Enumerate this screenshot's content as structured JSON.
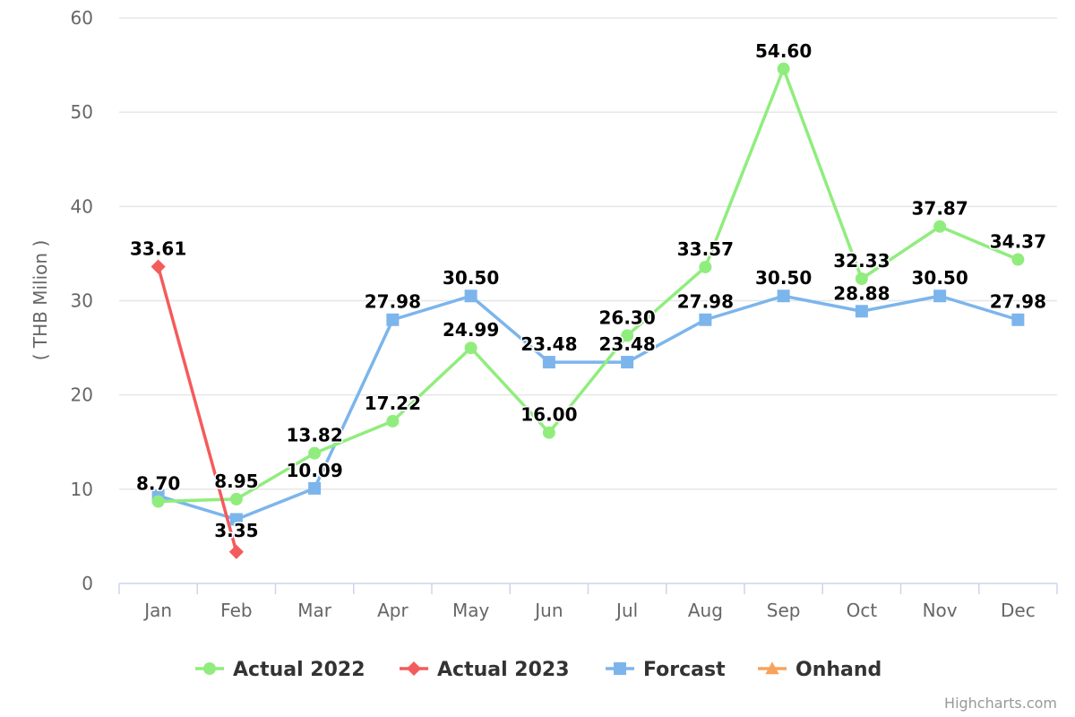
{
  "chart_data": {
    "type": "line",
    "title": "",
    "xlabel": "",
    "ylabel": "( THB Milion )",
    "ylim": [
      0,
      60
    ],
    "yticks": [
      0,
      10,
      20,
      30,
      40,
      50,
      60
    ],
    "categories": [
      "Jan",
      "Feb",
      "Mar",
      "Apr",
      "May",
      "Jun",
      "Jul",
      "Aug",
      "Sep",
      "Oct",
      "Nov",
      "Dec"
    ],
    "grid": true,
    "legend_position": "bottom-center",
    "series": [
      {
        "name": "Actual 2022",
        "color": "#90ed7d",
        "marker": "circle",
        "values": [
          8.7,
          8.95,
          13.82,
          17.22,
          24.99,
          16.0,
          26.3,
          33.57,
          54.6,
          32.33,
          37.87,
          34.37
        ],
        "labels": [
          "8.70",
          "8.95",
          "13.82",
          "17.22",
          "24.99",
          "16.00",
          "26.30",
          "33.57",
          "54.60",
          "32.33",
          "37.87",
          "34.37"
        ]
      },
      {
        "name": "Actual 2023",
        "color": "#f45b5b",
        "marker": "diamond",
        "values": [
          33.61,
          3.35,
          null,
          null,
          null,
          null,
          null,
          null,
          null,
          null,
          null,
          null
        ],
        "labels": [
          "33.61",
          "3.35",
          "",
          "",
          "",
          "",
          "",
          "",
          "",
          "",
          "",
          ""
        ]
      },
      {
        "name": "Forcast",
        "color": "#7cb5ec",
        "marker": "square",
        "values": [
          9.3,
          6.8,
          10.09,
          27.98,
          30.5,
          23.48,
          23.48,
          27.98,
          30.5,
          28.88,
          30.5,
          27.98
        ],
        "labels": [
          "",
          "",
          "10.09",
          "27.98",
          "30.50",
          "23.48",
          "23.48",
          "27.98",
          "30.50",
          "28.88",
          "30.50",
          "27.98"
        ]
      },
      {
        "name": "Onhand",
        "color": "#f7a35c",
        "marker": "triangle",
        "values": [
          null,
          null,
          null,
          null,
          null,
          null,
          null,
          null,
          null,
          null,
          null,
          null
        ],
        "labels": []
      }
    ]
  },
  "credits": "Highcharts.com"
}
